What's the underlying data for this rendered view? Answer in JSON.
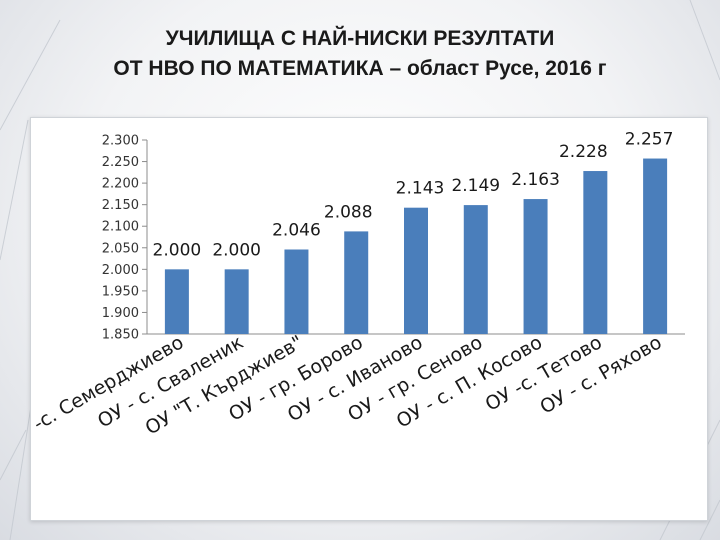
{
  "slide": {
    "title_line1": "УЧИЛИЩА С НАЙ-НИСКИ РЕЗУЛТАТИ",
    "title_line2": "ОТ НВО ПО МАТЕМАТИКА – област Русе, 2016 г"
  },
  "chart_data": {
    "type": "bar",
    "categories": [
      "ОУ -с. Семерджиево",
      "ОУ - с. Сваленик",
      "ОУ \"Т. Кърджиев\"",
      "ОУ - гр. Борово",
      "ОУ - с. Иваново",
      "ОУ - гр. Сеново",
      "ОУ - с. П. Косово",
      "ОУ -с. Тетово",
      "ОУ - с. Ряхово"
    ],
    "values": [
      2.0,
      2.0,
      2.046,
      2.088,
      2.143,
      2.149,
      2.163,
      2.228,
      2.257
    ],
    "data_labels": [
      "2.000",
      "2.000",
      "2.046",
      "2.088",
      "2.143",
      "2.149",
      "2.163",
      "2.228",
      "2.257"
    ],
    "ylim": [
      1.85,
      2.3
    ],
    "yticks": [
      1.85,
      1.9,
      1.95,
      2.0,
      2.05,
      2.1,
      2.15,
      2.2,
      2.25,
      2.3
    ],
    "ytick_labels": [
      "1.850",
      "1.900",
      "1.950",
      "2.000",
      "2.050",
      "2.100",
      "2.150",
      "2.200",
      "2.250",
      "2.300"
    ],
    "bar_color": "#4a7ebb",
    "grid": false,
    "legend": "none",
    "title": "",
    "xlabel": "",
    "ylabel": ""
  }
}
